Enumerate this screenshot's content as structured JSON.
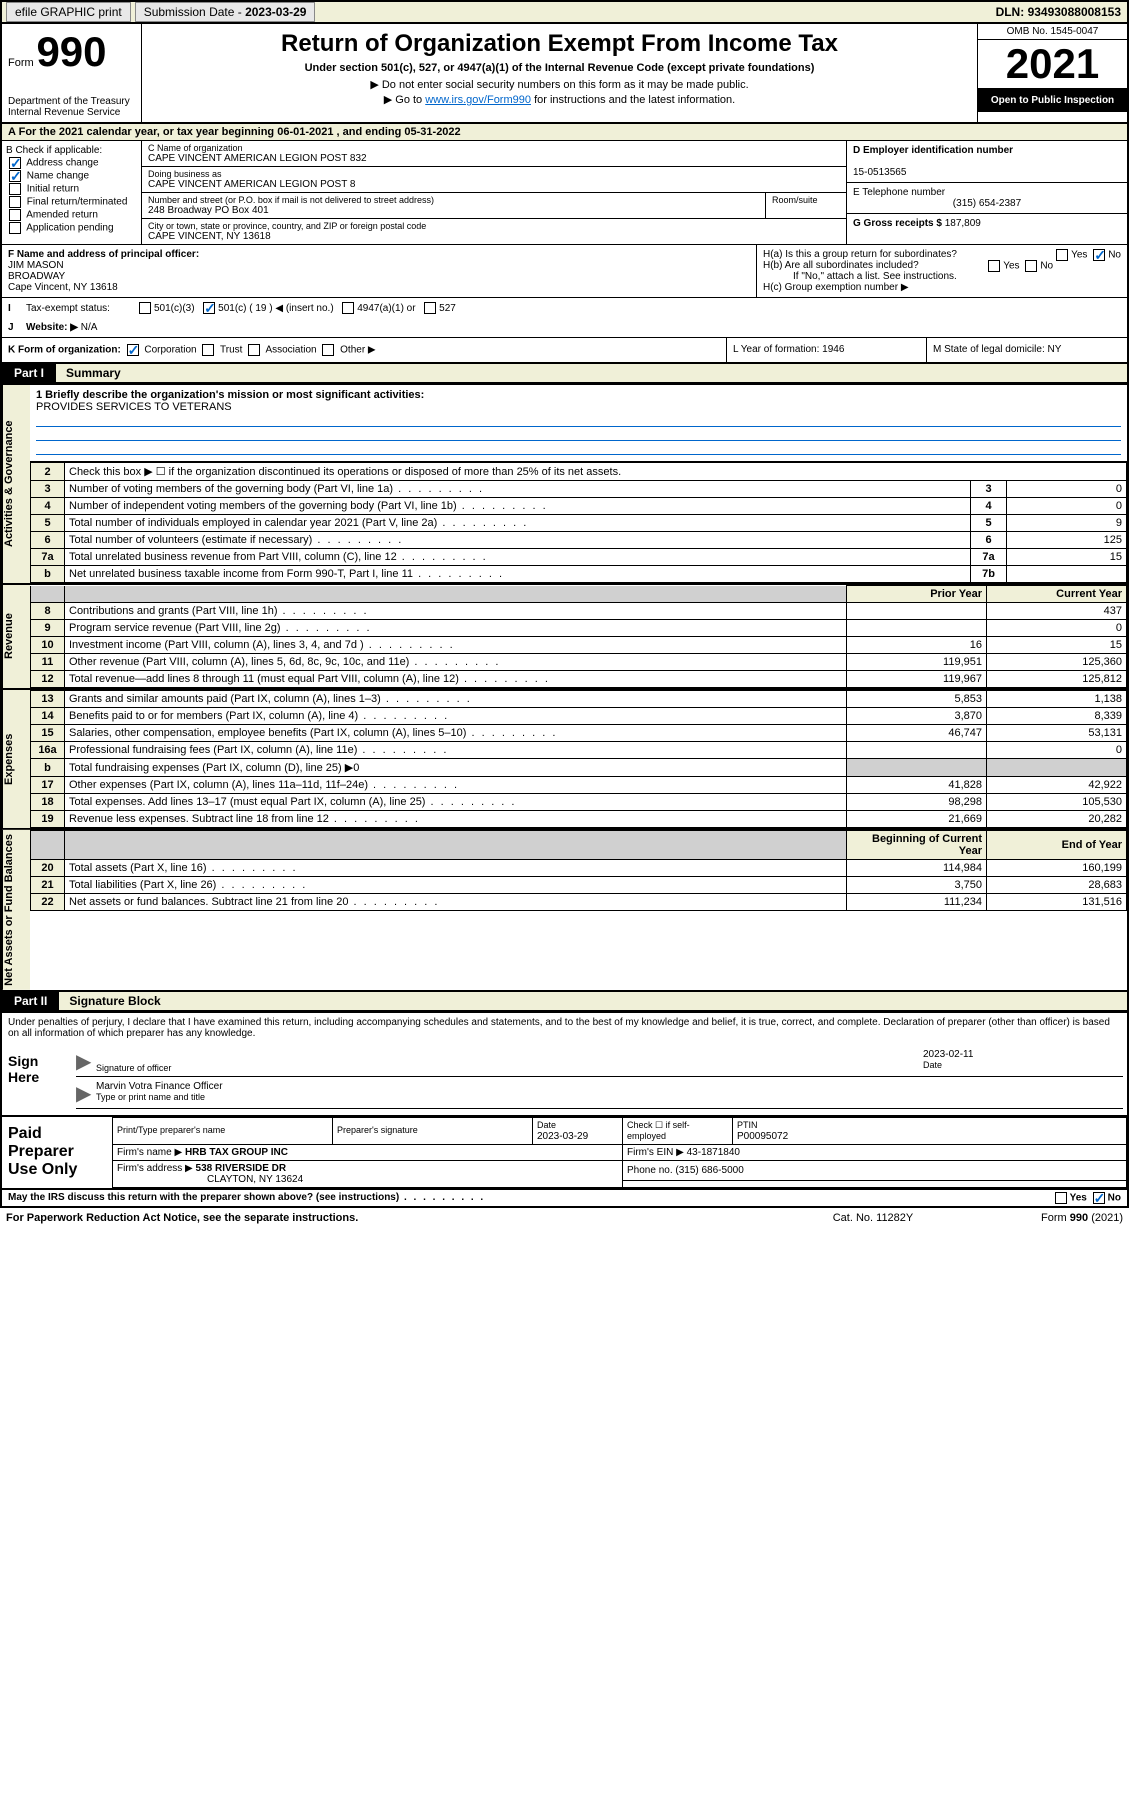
{
  "topbar": {
    "efile": "efile GRAPHIC print",
    "sub_lbl": "Submission Date - ",
    "sub_date": "2023-03-29",
    "dln_lbl": "DLN: ",
    "dln": "93493088008153"
  },
  "hdr": {
    "form": "Form",
    "num": "990",
    "dept": "Department of the Treasury\nInternal Revenue Service",
    "title": "Return of Organization Exempt From Income Tax",
    "sub": "Under section 501(c), 527, or 4947(a)(1) of the Internal Revenue Code (except private foundations)",
    "note1": "▶ Do not enter social security numbers on this form as it may be made public.",
    "note2_pre": "▶ Go to ",
    "note2_link": "www.irs.gov/Form990",
    "note2_post": " for instructions and the latest information.",
    "omb": "OMB No. 1545-0047",
    "year": "2021",
    "open": "Open to Public Inspection"
  },
  "period": {
    "pre": "For the 2021 calendar year, or tax year beginning ",
    "begin": "06-01-2021",
    "mid": " , and ending ",
    "end": "05-31-2022"
  },
  "B": {
    "lbl": "B Check if applicable:",
    "items": [
      "Address change",
      "Name change",
      "Initial return",
      "Final return/terminated",
      "Amended return",
      "Application pending"
    ],
    "checked": [
      true,
      true,
      false,
      false,
      false,
      false
    ]
  },
  "C": {
    "name_lbl": "C Name of organization",
    "name": "CAPE VINCENT AMERICAN LEGION POST 832",
    "dba_lbl": "Doing business as",
    "dba": "CAPE VINCENT AMERICAN LEGION POST 8",
    "addr_lbl": "Number and street (or P.O. box if mail is not delivered to street address)",
    "room_lbl": "Room/suite",
    "addr": "248 Broadway PO Box 401",
    "city_lbl": "City or town, state or province, country, and ZIP or foreign postal code",
    "city": "CAPE VINCENT, NY  13618"
  },
  "D": {
    "ein_lbl": "D Employer identification number",
    "ein": "15-0513565",
    "tel_lbl": "E Telephone number",
    "tel": "(315) 654-2387",
    "gross_lbl": "G Gross receipts $ ",
    "gross": "187,809"
  },
  "F": {
    "lbl": "F  Name and address of principal officer:",
    "name": "JIM MASON",
    "addr1": "BROADWAY",
    "addr2": "Cape Vincent, NY  13618"
  },
  "H": {
    "a": "H(a)  Is this a group return for subordinates?",
    "b": "H(b)  Are all subordinates included?",
    "note": "If \"No,\" attach a list. See instructions.",
    "c": "H(c)  Group exemption number ▶"
  },
  "I": {
    "lbl": "Tax-exempt status:",
    "opts": [
      "501(c)(3)",
      "501(c) ( 19 ) ◀ (insert no.)",
      "4947(a)(1) or",
      "527"
    ]
  },
  "J": {
    "lbl": "Website: ▶",
    "val": "N/A"
  },
  "K": {
    "lbl": "K Form of organization:",
    "opts": [
      "Corporation",
      "Trust",
      "Association",
      "Other ▶"
    ],
    "L": "L Year of formation: 1946",
    "M": "M State of legal domicile: NY"
  },
  "partI": {
    "tag": "Part I",
    "title": "Summary"
  },
  "side": {
    "ag": "Activities & Governance",
    "rev": "Revenue",
    "exp": "Expenses",
    "na": "Net Assets or\nFund Balances"
  },
  "q1": {
    "lbl": "1  Briefly describe the organization's mission or most significant activities:",
    "val": "PROVIDES SERVICES TO VETERANS"
  },
  "ag_rows": [
    {
      "n": "2",
      "d": "Check this box ▶ ☐  if the organization discontinued its operations or disposed of more than 25% of its net assets."
    },
    {
      "n": "3",
      "d": "Number of voting members of the governing body (Part VI, line 1a)",
      "box": "3",
      "v": "0"
    },
    {
      "n": "4",
      "d": "Number of independent voting members of the governing body (Part VI, line 1b)",
      "box": "4",
      "v": "0"
    },
    {
      "n": "5",
      "d": "Total number of individuals employed in calendar year 2021 (Part V, line 2a)",
      "box": "5",
      "v": "9"
    },
    {
      "n": "6",
      "d": "Total number of volunteers (estimate if necessary)",
      "box": "6",
      "v": "125"
    },
    {
      "n": "7a",
      "d": "Total unrelated business revenue from Part VIII, column (C), line 12",
      "box": "7a",
      "v": "15"
    },
    {
      "n": "b",
      "d": "Net unrelated business taxable income from Form 990-T, Part I, line 11",
      "box": "7b",
      "v": ""
    }
  ],
  "rev_hdr": {
    "py": "Prior Year",
    "cy": "Current Year"
  },
  "rev_rows": [
    {
      "n": "8",
      "d": "Contributions and grants (Part VIII, line 1h)",
      "py": "",
      "cy": "437"
    },
    {
      "n": "9",
      "d": "Program service revenue (Part VIII, line 2g)",
      "py": "",
      "cy": "0"
    },
    {
      "n": "10",
      "d": "Investment income (Part VIII, column (A), lines 3, 4, and 7d )",
      "py": "16",
      "cy": "15"
    },
    {
      "n": "11",
      "d": "Other revenue (Part VIII, column (A), lines 5, 6d, 8c, 9c, 10c, and 11e)",
      "py": "119,951",
      "cy": "125,360"
    },
    {
      "n": "12",
      "d": "Total revenue—add lines 8 through 11 (must equal Part VIII, column (A), line 12)",
      "py": "119,967",
      "cy": "125,812"
    }
  ],
  "exp_rows": [
    {
      "n": "13",
      "d": "Grants and similar amounts paid (Part IX, column (A), lines 1–3)",
      "py": "5,853",
      "cy": "1,138"
    },
    {
      "n": "14",
      "d": "Benefits paid to or for members (Part IX, column (A), line 4)",
      "py": "3,870",
      "cy": "8,339"
    },
    {
      "n": "15",
      "d": "Salaries, other compensation, employee benefits (Part IX, column (A), lines 5–10)",
      "py": "46,747",
      "cy": "53,131"
    },
    {
      "n": "16a",
      "d": "Professional fundraising fees (Part IX, column (A), line 11e)",
      "py": "",
      "cy": "0"
    },
    {
      "n": "b",
      "d": "Total fundraising expenses (Part IX, column (D), line 25) ▶0",
      "shade": true
    },
    {
      "n": "17",
      "d": "Other expenses (Part IX, column (A), lines 11a–11d, 11f–24e)",
      "py": "41,828",
      "cy": "42,922"
    },
    {
      "n": "18",
      "d": "Total expenses. Add lines 13–17 (must equal Part IX, column (A), line 25)",
      "py": "98,298",
      "cy": "105,530"
    },
    {
      "n": "19",
      "d": "Revenue less expenses. Subtract line 18 from line 12",
      "py": "21,669",
      "cy": "20,282"
    }
  ],
  "na_hdr": {
    "py": "Beginning of Current Year",
    "cy": "End of Year"
  },
  "na_rows": [
    {
      "n": "20",
      "d": "Total assets (Part X, line 16)",
      "py": "114,984",
      "cy": "160,199"
    },
    {
      "n": "21",
      "d": "Total liabilities (Part X, line 26)",
      "py": "3,750",
      "cy": "28,683"
    },
    {
      "n": "22",
      "d": "Net assets or fund balances. Subtract line 21 from line 20",
      "py": "111,234",
      "cy": "131,516"
    }
  ],
  "partII": {
    "tag": "Part II",
    "title": "Signature Block"
  },
  "sig": {
    "decl": "Under penalties of perjury, I declare that I have examined this return, including accompanying schedules and statements, and to the best of my knowledge and belief, it is true, correct, and complete. Declaration of preparer (other than officer) is based on all information of which preparer has any knowledge.",
    "here": "Sign Here",
    "off_lbl": "Signature of officer",
    "date_lbl": "Date",
    "date": "2023-02-11",
    "name": "Marvin Votra  Finance Officer",
    "name_lbl": "Type or print name and title"
  },
  "prep": {
    "lbl": "Paid Preparer Use Only",
    "h1": "Print/Type preparer's name",
    "h2": "Preparer's signature",
    "h3": "Date",
    "h3v": "2023-03-29",
    "h4": "Check ☐ if self-employed",
    "h5": "PTIN",
    "h5v": "P00095072",
    "firm_lbl": "Firm's name    ▶ ",
    "firm": "HRB TAX GROUP INC",
    "ein_lbl": "Firm's EIN ▶ ",
    "ein": "43-1871840",
    "addr_lbl": "Firm's address ▶ ",
    "addr1": "538 RIVERSIDE DR",
    "addr2": "CLAYTON, NY  13624",
    "phone_lbl": "Phone no. ",
    "phone": "(315) 686-5000"
  },
  "footer": {
    "discuss": "May the IRS discuss this return with the preparer shown above? (see instructions)",
    "pra": "For Paperwork Reduction Act Notice, see the separate instructions.",
    "cat": "Cat. No. 11282Y",
    "form": "Form 990 (2021)"
  }
}
